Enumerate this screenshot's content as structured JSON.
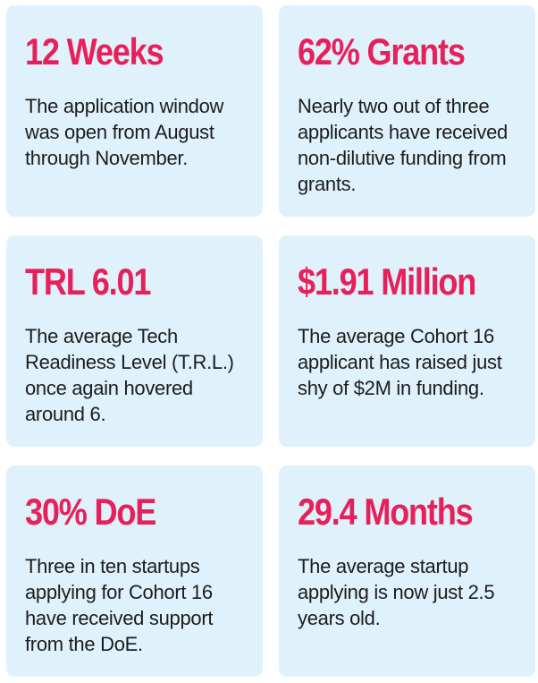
{
  "cards": [
    {
      "stat": "12 Weeks",
      "description": "The application window was open from August through November."
    },
    {
      "stat": "62% Grants",
      "description": "Nearly two out of three applicants have received non-dilutive funding from grants."
    },
    {
      "stat": "TRL 6.01",
      "description": "The average Tech Readiness Level (T.R.L.) once again hovered around 6."
    },
    {
      "stat": "$1.91 Million",
      "description": "The average Cohort 16 applicant has raised just shy of $2M in funding."
    },
    {
      "stat": "30% DoE",
      "description": "Three in ten startups applying for Cohort 16 have received support from the DoE."
    },
    {
      "stat": "29.4 Months",
      "description": "The average startup applying is now just 2.5 years old."
    }
  ],
  "colors": {
    "card_background": "#dff2fb",
    "stat_accent": "#e8205a",
    "body_text": "#1c1c1c"
  }
}
